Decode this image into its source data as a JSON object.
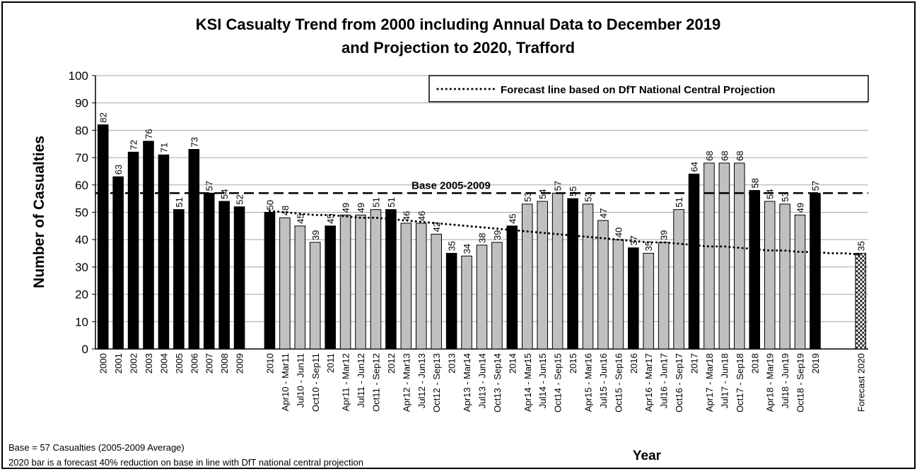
{
  "chart_data": {
    "type": "bar",
    "title": [
      "KSI Casualty Trend from 2000 including Annual Data to December 2019",
      "and Projection to 2020, Trafford"
    ],
    "y_label": "Number of Casualties",
    "x_label": "Year",
    "categories": [
      "2000",
      "2001",
      "2002",
      "2003",
      "2004",
      "2005",
      "2006",
      "2007",
      "2008",
      "2009",
      null,
      "2010",
      "Apr10 - Mar11",
      "Jul10 - Jun11",
      "Oct10 - Sep11",
      "2011",
      "Apr11 - Mar12",
      "Jul11 - Jun12",
      "Oct11 - Sep12",
      "2012",
      "Apr12 - Mar13",
      "Jul12 - Jun13",
      "Oct12 - Sep13",
      "2013",
      "Apr13 - Mar14",
      "Jul13 - Jun14",
      "Oct13 - Sep14",
      "2014",
      "Apr14 - Mar15",
      "Jul14 - Jun15",
      "Oct14 - Sep15",
      "2015",
      "Apr15 - Mar16",
      "Jul15 - Jun16",
      "Oct15 - Sep16",
      "2016",
      "Apr16 - Mar17",
      "Jul16 - Jun17",
      "Oct16 - Sep17",
      "2017",
      "Apr17 - Mar18",
      "Jul17 - Jun18",
      "Oct17 - Sep18",
      "2018",
      "Apr18 - Mar19",
      "Jul18 - Jun19",
      "Oct18 - Sep19",
      "2019",
      null,
      null,
      "Forecast 2020"
    ],
    "values": [
      82,
      63,
      72,
      76,
      71,
      51,
      73,
      57,
      54,
      52,
      null,
      50,
      48,
      45,
      39,
      45,
      49,
      49,
      51,
      51,
      46,
      46,
      42,
      35,
      34,
      38,
      39,
      45,
      53,
      54,
      57,
      55,
      53,
      47,
      40,
      37,
      35,
      39,
      51,
      64,
      68,
      68,
      68,
      58,
      54,
      53,
      49,
      57,
      null,
      null,
      35
    ],
    "bar_colors": [
      "#000000",
      "#000000",
      "#000000",
      "#000000",
      "#000000",
      "#000000",
      "#000000",
      "#000000",
      "#000000",
      "#000000",
      null,
      "#000000",
      "#c0c0c0",
      "#c0c0c0",
      "#c0c0c0",
      "#000000",
      "#c0c0c0",
      "#c0c0c0",
      "#c0c0c0",
      "#000000",
      "#c0c0c0",
      "#c0c0c0",
      "#c0c0c0",
      "#000000",
      "#c0c0c0",
      "#c0c0c0",
      "#c0c0c0",
      "#000000",
      "#c0c0c0",
      "#c0c0c0",
      "#c0c0c0",
      "#000000",
      "#c0c0c0",
      "#c0c0c0",
      "#c0c0c0",
      "#000000",
      "#c0c0c0",
      "#c0c0c0",
      "#c0c0c0",
      "#000000",
      "#c0c0c0",
      "#c0c0c0",
      "#c0c0c0",
      "#000000",
      "#c0c0c0",
      "#c0c0c0",
      "#c0c0c0",
      "#000000",
      null,
      null,
      "hatch"
    ],
    "forecast_line": {
      "name": "Forecast line based on DfT National Central Projection",
      "color": "#000000",
      "values": [
        null,
        null,
        null,
        null,
        null,
        null,
        null,
        null,
        null,
        null,
        null,
        50.5,
        50,
        49.5,
        49,
        49,
        48.5,
        48,
        48,
        47.5,
        47,
        46.5,
        46,
        45.5,
        45,
        44.5,
        44,
        43.5,
        43,
        42.5,
        42,
        41.5,
        41,
        40.5,
        40,
        39.5,
        39,
        39,
        38.5,
        38,
        37.5,
        37.5,
        37,
        36.5,
        36,
        36,
        35.5,
        35.5,
        35,
        35,
        34.5
      ]
    },
    "base_line": {
      "label": "Base 2005-2009",
      "value": 57
    },
    "ylim": [
      0,
      100
    ],
    "yticks": [
      0,
      10,
      20,
      30,
      40,
      50,
      60,
      70,
      80,
      90,
      100
    ],
    "grid": true,
    "notes": [
      "Base = 57 Casualties (2005-2009 Average)",
      "2020 bar is a forecast 40% reduction on base in line with DfT national central projection"
    ]
  }
}
